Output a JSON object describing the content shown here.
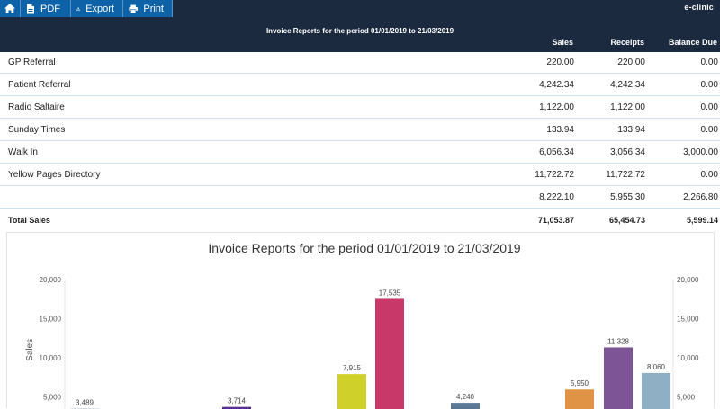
{
  "toolbar": {
    "pdf_label": "PDF",
    "export_label": "Export",
    "print_label": "Print",
    "brand": "e-clinic"
  },
  "report": {
    "title": "Invoice Reports for the period 01/01/2019 to 21/03/2019",
    "columns": {
      "sales": "Sales",
      "receipts": "Receipts",
      "balance": "Balance Due"
    }
  },
  "rows": [
    {
      "name": "GP Referral",
      "sales": "220.00",
      "receipts": "220.00",
      "balance": "0.00"
    },
    {
      "name": "Patient Referral",
      "sales": "4,242.34",
      "receipts": "4,242.34",
      "balance": "0.00"
    },
    {
      "name": "Radio Saltaire",
      "sales": "1,122.00",
      "receipts": "1,122.00",
      "balance": "0.00"
    },
    {
      "name": "Sunday Times",
      "sales": "133.94",
      "receipts": "133.94",
      "balance": "0.00"
    },
    {
      "name": "Walk In",
      "sales": "6,056.34",
      "receipts": "3,056.34",
      "balance": "3,000.00"
    },
    {
      "name": "Yellow Pages Directory",
      "sales": "11,722.72",
      "receipts": "11,722.72",
      "balance": "0.00"
    },
    {
      "name": "",
      "sales": "8,222.10",
      "receipts": "5,955.30",
      "balance": "2,266.80"
    }
  ],
  "total": {
    "label": "Total Sales",
    "sales": "71,053.87",
    "receipts": "65,454.73",
    "balance": "5,599.14"
  },
  "chart_data": {
    "type": "bar",
    "title": "Invoice Reports for the period 01/01/2019 to 21/03/2019",
    "ylabel": "Sales",
    "ylim": [
      0,
      20000
    ],
    "yticks": [
      5000,
      10000,
      15000,
      20000
    ],
    "ytick_labels": [
      "5,000",
      "10,000",
      "15,000",
      "20,000"
    ],
    "bars": [
      {
        "value": 3489,
        "label": "3,489",
        "color": "#9aa7b8"
      },
      {
        "value": 3714,
        "label": "3,714",
        "color": "#5a2d91"
      },
      {
        "value": 7915,
        "label": "7,915",
        "color": "#cfd12a"
      },
      {
        "value": 17535,
        "label": "17,535",
        "color": "#c8396a"
      },
      {
        "value": 4240,
        "label": "4,240",
        "color": "#5b7796"
      },
      {
        "value": 5950,
        "label": "5,950",
        "color": "#e09245"
      },
      {
        "value": 11328,
        "label": "11,328",
        "color": "#7d5495"
      },
      {
        "value": 8060,
        "label": "8,060",
        "color": "#8fb0c4"
      }
    ]
  }
}
